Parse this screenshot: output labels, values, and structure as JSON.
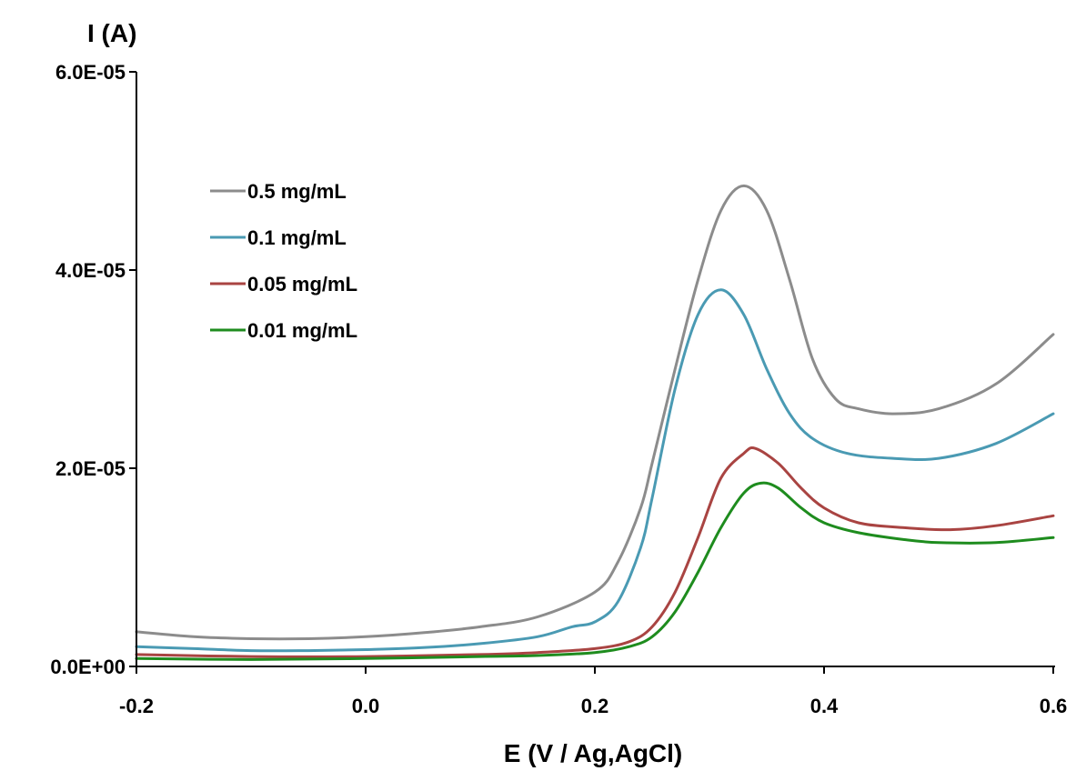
{
  "chart_data": {
    "type": "line",
    "xlabel": "E (V / Ag,AgCl)",
    "ylabel": "I (A)",
    "xlim": [
      -0.2,
      0.6
    ],
    "ylim": [
      0,
      6e-05
    ],
    "x_ticks": [
      {
        "value": -0.2,
        "label": "-0.2"
      },
      {
        "value": 0.0,
        "label": "0.0"
      },
      {
        "value": 0.2,
        "label": "0.2"
      },
      {
        "value": 0.4,
        "label": "0.4"
      },
      {
        "value": 0.6,
        "label": "0.6"
      }
    ],
    "y_ticks": [
      {
        "value": 0,
        "label": "0.0E+00"
      },
      {
        "value": 2e-05,
        "label": "2.0E-05"
      },
      {
        "value": 4e-05,
        "label": "4.0E-05"
      },
      {
        "value": 6e-05,
        "label": "6.0E-05"
      }
    ],
    "grid": false,
    "legend_position": "top-left",
    "series": [
      {
        "name": "0.5 mg/mL",
        "color": "#8c8c8c",
        "points": [
          [
            -0.2,
            3.5e-06
          ],
          [
            -0.15,
            3e-06
          ],
          [
            -0.1,
            2.8e-06
          ],
          [
            -0.05,
            2.8e-06
          ],
          [
            0.0,
            3e-06
          ],
          [
            0.05,
            3.4e-06
          ],
          [
            0.1,
            4e-06
          ],
          [
            0.15,
            5e-06
          ],
          [
            0.2,
            7.5e-06
          ],
          [
            0.22,
            1.05e-05
          ],
          [
            0.24,
            1.6e-05
          ],
          [
            0.25,
            2.05e-05
          ],
          [
            0.27,
            3e-05
          ],
          [
            0.29,
            3.9e-05
          ],
          [
            0.31,
            4.6e-05
          ],
          [
            0.33,
            4.85e-05
          ],
          [
            0.35,
            4.6e-05
          ],
          [
            0.37,
            3.9e-05
          ],
          [
            0.39,
            3.1e-05
          ],
          [
            0.41,
            2.7e-05
          ],
          [
            0.43,
            2.6e-05
          ],
          [
            0.46,
            2.55e-05
          ],
          [
            0.5,
            2.6e-05
          ],
          [
            0.55,
            2.85e-05
          ],
          [
            0.6,
            3.35e-05
          ]
        ]
      },
      {
        "name": "0.1 mg/mL",
        "color": "#4a9ab3",
        "points": [
          [
            -0.2,
            2e-06
          ],
          [
            -0.15,
            1.8e-06
          ],
          [
            -0.1,
            1.6e-06
          ],
          [
            -0.05,
            1.6e-06
          ],
          [
            0.0,
            1.7e-06
          ],
          [
            0.05,
            1.9e-06
          ],
          [
            0.1,
            2.3e-06
          ],
          [
            0.15,
            3e-06
          ],
          [
            0.18,
            4e-06
          ],
          [
            0.2,
            4.5e-06
          ],
          [
            0.22,
            6.5e-06
          ],
          [
            0.24,
            1.2e-05
          ],
          [
            0.25,
            1.7e-05
          ],
          [
            0.27,
            2.8e-05
          ],
          [
            0.29,
            3.55e-05
          ],
          [
            0.31,
            3.8e-05
          ],
          [
            0.33,
            3.55e-05
          ],
          [
            0.35,
            3e-05
          ],
          [
            0.37,
            2.55e-05
          ],
          [
            0.39,
            2.3e-05
          ],
          [
            0.42,
            2.15e-05
          ],
          [
            0.46,
            2.1e-05
          ],
          [
            0.5,
            2.1e-05
          ],
          [
            0.55,
            2.25e-05
          ],
          [
            0.6,
            2.55e-05
          ]
        ]
      },
      {
        "name": "0.05 mg/mL",
        "color": "#a94442",
        "points": [
          [
            -0.2,
            1.2e-06
          ],
          [
            -0.1,
            1e-06
          ],
          [
            0.0,
            1e-06
          ],
          [
            0.1,
            1.2e-06
          ],
          [
            0.15,
            1.4e-06
          ],
          [
            0.2,
            1.8e-06
          ],
          [
            0.23,
            2.5e-06
          ],
          [
            0.25,
            4e-06
          ],
          [
            0.27,
            7.5e-06
          ],
          [
            0.29,
            1.3e-05
          ],
          [
            0.31,
            1.9e-05
          ],
          [
            0.33,
            2.15e-05
          ],
          [
            0.34,
            2.2e-05
          ],
          [
            0.36,
            2.05e-05
          ],
          [
            0.38,
            1.8e-05
          ],
          [
            0.4,
            1.6e-05
          ],
          [
            0.43,
            1.45e-05
          ],
          [
            0.47,
            1.4e-05
          ],
          [
            0.51,
            1.38e-05
          ],
          [
            0.55,
            1.42e-05
          ],
          [
            0.6,
            1.52e-05
          ]
        ]
      },
      {
        "name": "0.01 mg/mL",
        "color": "#1e8c1e",
        "points": [
          [
            -0.2,
            8e-07
          ],
          [
            -0.1,
            7e-07
          ],
          [
            0.0,
            8e-07
          ],
          [
            0.1,
            1e-06
          ],
          [
            0.15,
            1.1e-06
          ],
          [
            0.2,
            1.4e-06
          ],
          [
            0.23,
            2e-06
          ],
          [
            0.25,
            3e-06
          ],
          [
            0.27,
            5.5e-06
          ],
          [
            0.29,
            9.5e-06
          ],
          [
            0.31,
            1.4e-05
          ],
          [
            0.33,
            1.75e-05
          ],
          [
            0.345,
            1.85e-05
          ],
          [
            0.36,
            1.8e-05
          ],
          [
            0.38,
            1.6e-05
          ],
          [
            0.4,
            1.45e-05
          ],
          [
            0.43,
            1.35e-05
          ],
          [
            0.47,
            1.28e-05
          ],
          [
            0.5,
            1.25e-05
          ],
          [
            0.55,
            1.25e-05
          ],
          [
            0.6,
            1.3e-05
          ]
        ]
      }
    ]
  }
}
